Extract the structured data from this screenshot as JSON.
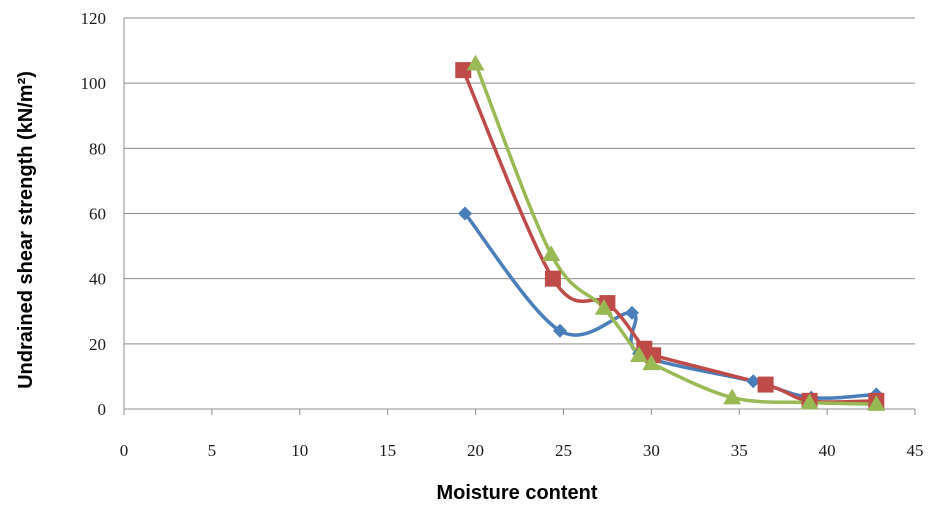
{
  "chart_data": {
    "type": "scatter",
    "title": "",
    "xlabel": "Moisture content",
    "ylabel": "Undrained shear strength (kN/m²)",
    "xlim": [
      0,
      45
    ],
    "ylim": [
      0,
      120
    ],
    "xticks": [
      "0",
      "5",
      "10",
      "15",
      "20",
      "25",
      "30",
      "35",
      "40",
      "45"
    ],
    "yticks": [
      "0",
      "20",
      "40",
      "60",
      "80",
      "100",
      "120"
    ],
    "grid": "horizontal",
    "legend": "none",
    "lines": "smoothed",
    "series": [
      {
        "color": "#4a7ebb",
        "marker": "diamond",
        "points": [
          [
            19.4,
            60
          ],
          [
            24.8,
            24
          ],
          [
            28.9,
            29.5
          ],
          [
            29.3,
            17
          ],
          [
            35.8,
            8.5
          ],
          [
            39.1,
            3.5
          ],
          [
            42.8,
            4.5
          ]
        ]
      },
      {
        "color": "#be4b48",
        "marker": "square",
        "points": [
          [
            19.3,
            104
          ],
          [
            24.4,
            40
          ],
          [
            27.5,
            32.5
          ],
          [
            29.6,
            18.5
          ],
          [
            30.1,
            16.5
          ],
          [
            36.5,
            7.5
          ],
          [
            39.0,
            2.5
          ],
          [
            42.8,
            2.5
          ]
        ]
      },
      {
        "color": "#98b954",
        "marker": "triangle",
        "points": [
          [
            20.0,
            106
          ],
          [
            24.3,
            47.5
          ],
          [
            27.3,
            31
          ],
          [
            29.3,
            16.5
          ],
          [
            30.0,
            14
          ],
          [
            34.6,
            3.5
          ],
          [
            39.0,
            2
          ],
          [
            42.8,
            1.5
          ]
        ]
      }
    ]
  }
}
